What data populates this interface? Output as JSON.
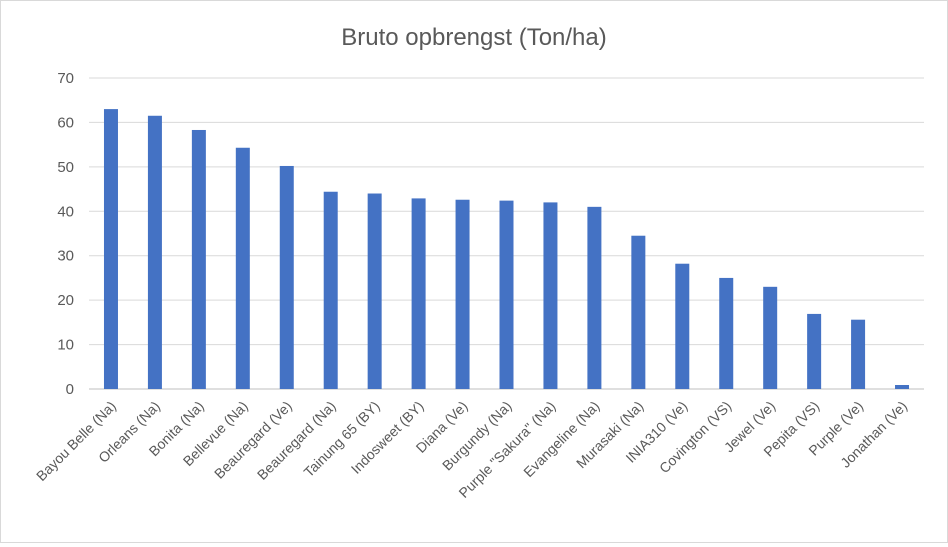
{
  "chart_data": {
    "type": "bar",
    "title": "Bruto opbrengst (Ton/ha)",
    "xlabel": "",
    "ylabel": "",
    "ylim": [
      0,
      70
    ],
    "yticks": [
      0,
      10,
      20,
      30,
      40,
      50,
      60,
      70
    ],
    "grid": true,
    "legend": "none",
    "bar_color": "#4472C4",
    "categories": [
      "Bayou Belle (Na)",
      "Orleans (Na)",
      "Bonita (Na)",
      "Bellevue (Na)",
      "Beauregard (Ve)",
      "Beauregard (Na)",
      "Tainung 65 (BY)",
      "Indosweet (BY)",
      "Diana (Ve)",
      "Burgundy (Na)",
      "Purple \"Sakura\" (Na)",
      "Evangeline (Na)",
      "Murasaki (Na)",
      "INIA310 (Ve)",
      "Covington (VS)",
      "Jewel (Ve)",
      "Pepita (VS)",
      "Purple (Ve)",
      "Jonathan (Ve)"
    ],
    "values": [
      63,
      61.5,
      58.3,
      54.3,
      50.2,
      44.4,
      44,
      42.9,
      42.6,
      42.4,
      42,
      41,
      34.5,
      28.2,
      25,
      23,
      16.9,
      15.6,
      0.9
    ]
  }
}
